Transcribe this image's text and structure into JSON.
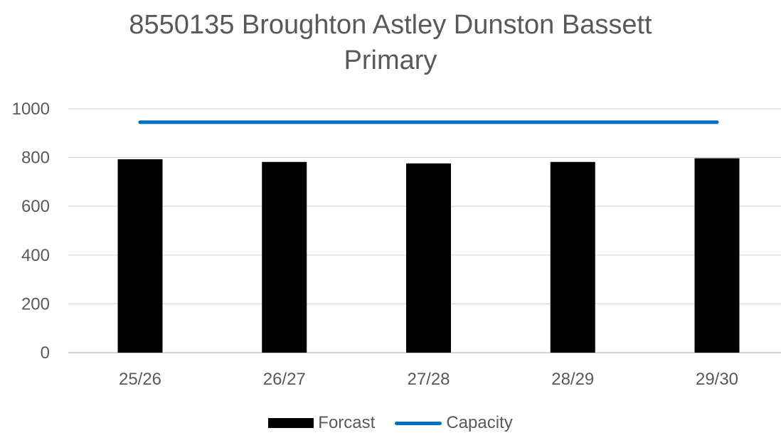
{
  "chart_data": {
    "type": "bar",
    "title_lines": [
      "8550135 Broughton Astley Dunston Bassett",
      "Primary"
    ],
    "categories": [
      "25/26",
      "26/27",
      "27/28",
      "28/29",
      "29/30"
    ],
    "series": [
      {
        "name": "Forcast",
        "type": "bar",
        "color": "#000000",
        "values": [
          793,
          782,
          776,
          782,
          797
        ]
      },
      {
        "name": "Capacity",
        "type": "line",
        "color": "#0070C0",
        "values": [
          945,
          945,
          945,
          945,
          945
        ]
      }
    ],
    "ylim": [
      0,
      1000
    ],
    "yticks": [
      0,
      200,
      400,
      600,
      800,
      1000
    ],
    "grid": true,
    "legend": "bottom"
  }
}
